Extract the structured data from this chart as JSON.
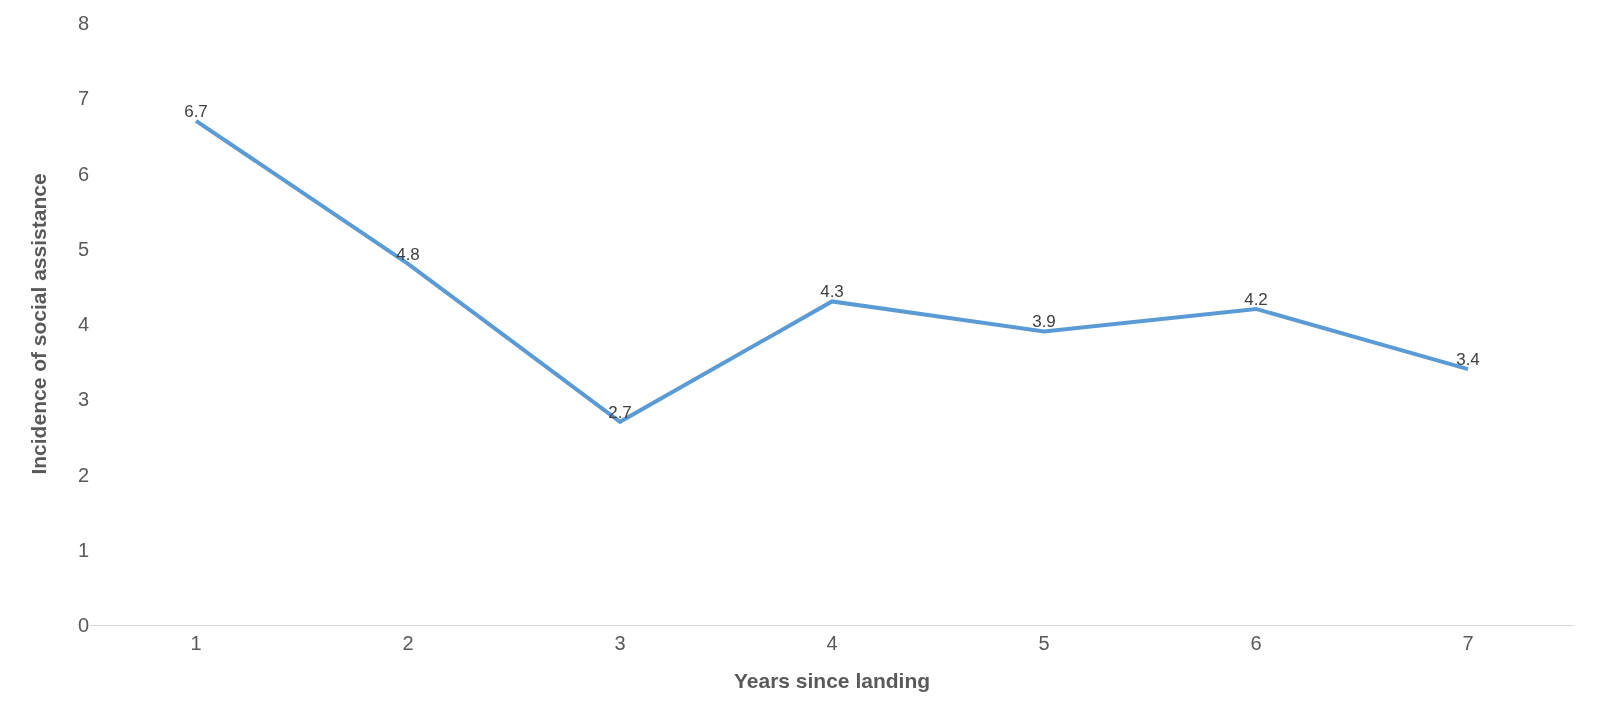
{
  "chart_data": {
    "type": "line",
    "xlabel": "Years since landing",
    "ylabel": "Incidence of social assistance",
    "categories": [
      "1",
      "2",
      "3",
      "4",
      "5",
      "6",
      "7"
    ],
    "series": [
      {
        "color": "#5b9bd5",
        "values": [
          6.7,
          4.8,
          2.7,
          4.3,
          3.9,
          4.2,
          3.4
        ]
      }
    ],
    "ylim": [
      0,
      8
    ],
    "yticks": [
      0,
      1,
      2,
      3,
      4,
      5,
      6,
      7,
      8
    ],
    "data_labels": true
  }
}
